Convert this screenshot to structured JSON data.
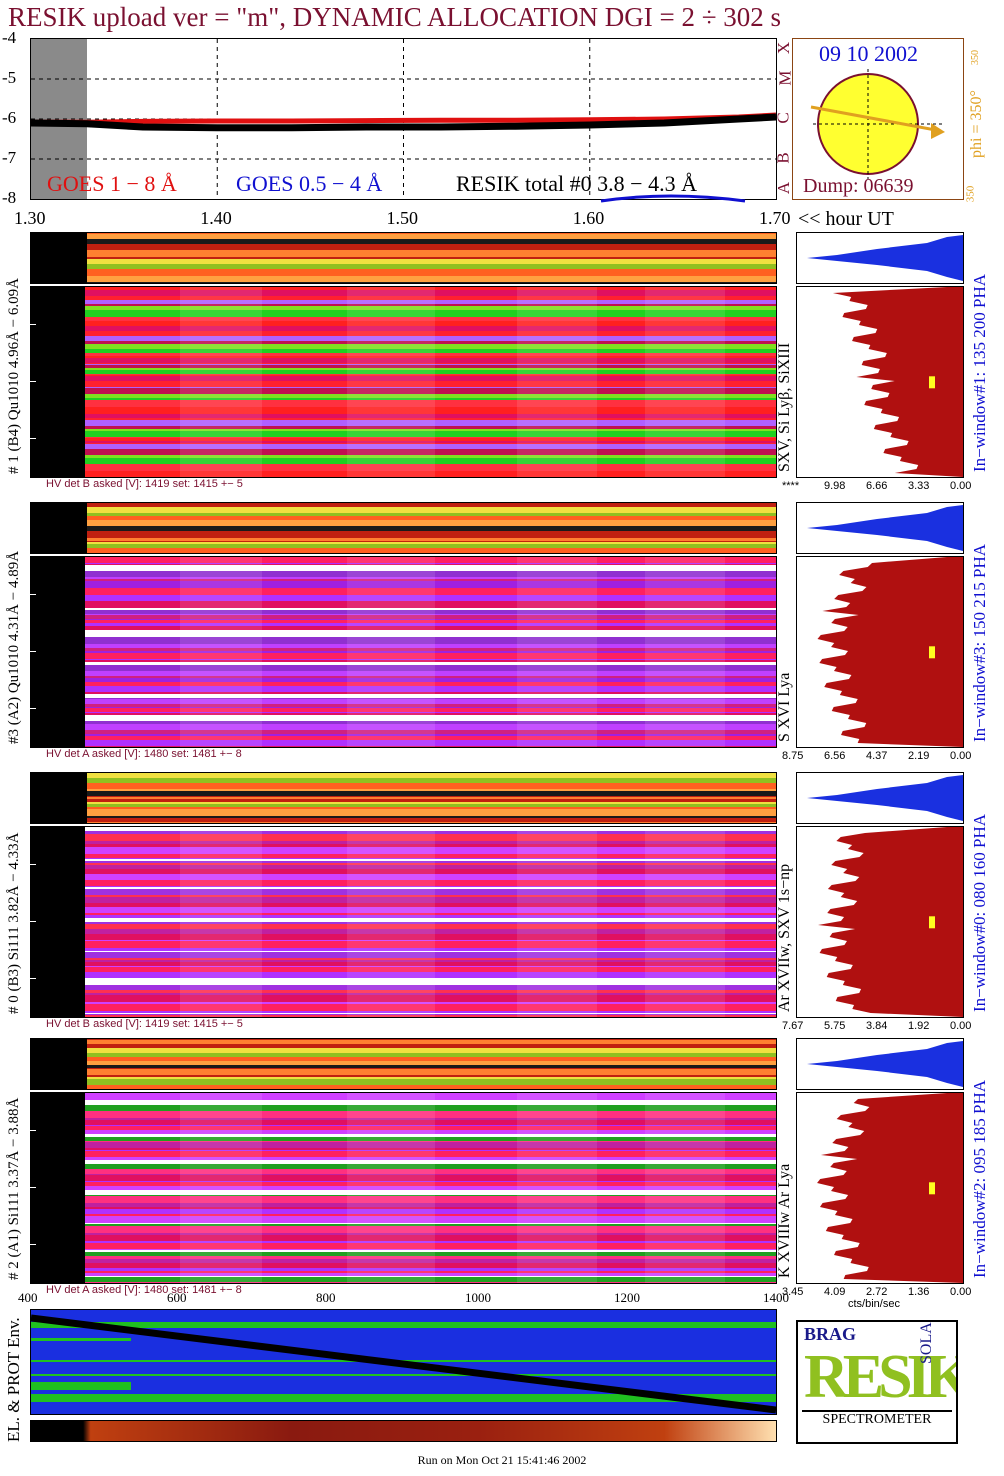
{
  "title": "RESIK upload ver = \"m\", DYNAMIC ALLOCATION  DGI =   2 ÷ 302 s",
  "goes_panel": {
    "yticks": [
      "-4",
      "-5",
      "-6",
      "-7",
      "-8"
    ],
    "xticks": [
      "1.30",
      "1.40",
      "1.50",
      "1.60",
      "1.70"
    ],
    "xunit": "<< hour UT",
    "class_letters": [
      "A",
      "B",
      "C",
      "M",
      "X"
    ],
    "legend_goes18": "GOES 1 − 8 Å",
    "legend_goes054": "GOES 0.5 − 4 Å",
    "legend_resik": "RESIK total #0  3.8 − 4.3 Å",
    "colors": {
      "goes18": "#e01010",
      "goes054": "#1010d0",
      "resik": "#000000"
    }
  },
  "sun_panel": {
    "date": "09 10 2002",
    "dump": "Dump: 06639",
    "phi": "phi = 350°",
    "phi_sub": "350",
    "phi_bottom": "350"
  },
  "channels": [
    {
      "left_label": "# 1 (B4) Qu1010 4.96Å − 6.09Å",
      "line_label": "SXV, Si Lyβ, SiXIII",
      "window_label": "In−window#1:  135 200 PHA",
      "hv": "HV det B asked [V]:  1419 set:  1415  +−    5",
      "scale": [
        "****",
        "9.98",
        "6.66",
        "3.33",
        "0.00"
      ]
    },
    {
      "left_label": "#3 (A2) Qu1010  4.31Å − 4.89Å",
      "line_label": "S XVI Lya",
      "window_label": "In−window#3:  150 215 PHA",
      "hv": "HV det A asked [V]:  1480 set:  1481  +−    8",
      "scale": [
        "8.75",
        "6.56",
        "4.37",
        "2.19",
        "0.00"
      ]
    },
    {
      "left_label": "# 0 (B3) Si111  3.82Å − 4.33Å",
      "line_label": "Ar XVIIw,  SXV 1s−np",
      "window_label": "In−window#0:  080 160 PHA",
      "hv": "HV det B asked [V]:  1419 set:  1415  +−    5",
      "scale": [
        "7.67",
        "5.75",
        "3.84",
        "1.92",
        "0.00"
      ]
    },
    {
      "left_label": "# 2 (A1) Si111  3.37Å − 3.88Å",
      "line_label": "K XVIIIw  Ar Lya",
      "window_label": "In−window#2:  095 185 PHA",
      "hv": "HV det A asked [V]:  1480 set:  1481  +−    8",
      "scale": [
        "3.45",
        "4.09",
        "2.72",
        "1.36",
        "0.00"
      ],
      "scale_unit": "cts/bin/sec"
    }
  ],
  "pha_axis": {
    "ticks": [
      "400",
      "600",
      "800",
      "1000",
      "1200",
      "1400"
    ]
  },
  "env_panel": {
    "label": "EL. & PROT Env."
  },
  "logo": {
    "title": "RESIK",
    "small": [
      "BRAG",
      "SOLAR"
    ],
    "subtitle": "SPECTROMETER"
  },
  "footer": "Run on Mon Oct 21 15:41:46 2002",
  "chart_data": {
    "type": "line",
    "title": "RESIK upload ver = \"m\", DYNAMIC ALLOCATION  DGI =   2 ÷ 302 s",
    "x": [
      1.3,
      1.33,
      1.36,
      1.4,
      1.44,
      1.48,
      1.52,
      1.56,
      1.6,
      1.64,
      1.68,
      1.7
    ],
    "xlim": [
      1.3,
      1.7
    ],
    "ylim": [
      -8,
      -4
    ],
    "series": [
      {
        "name": "GOES 1 − 8 Å",
        "values": [
          -6.08,
          -6.08,
          -6.06,
          -6.05,
          -6.05,
          -6.04,
          -6.03,
          -6.03,
          -6.02,
          -6.0,
          -5.95,
          -5.9
        ]
      },
      {
        "name": "RESIK total #0  3.8 − 4.3 Å",
        "values": [
          -6.1,
          -6.12,
          -6.2,
          -6.22,
          -6.22,
          -6.2,
          -6.2,
          -6.18,
          -6.15,
          -6.1,
          -6.0,
          -5.95
        ]
      }
    ]
  }
}
